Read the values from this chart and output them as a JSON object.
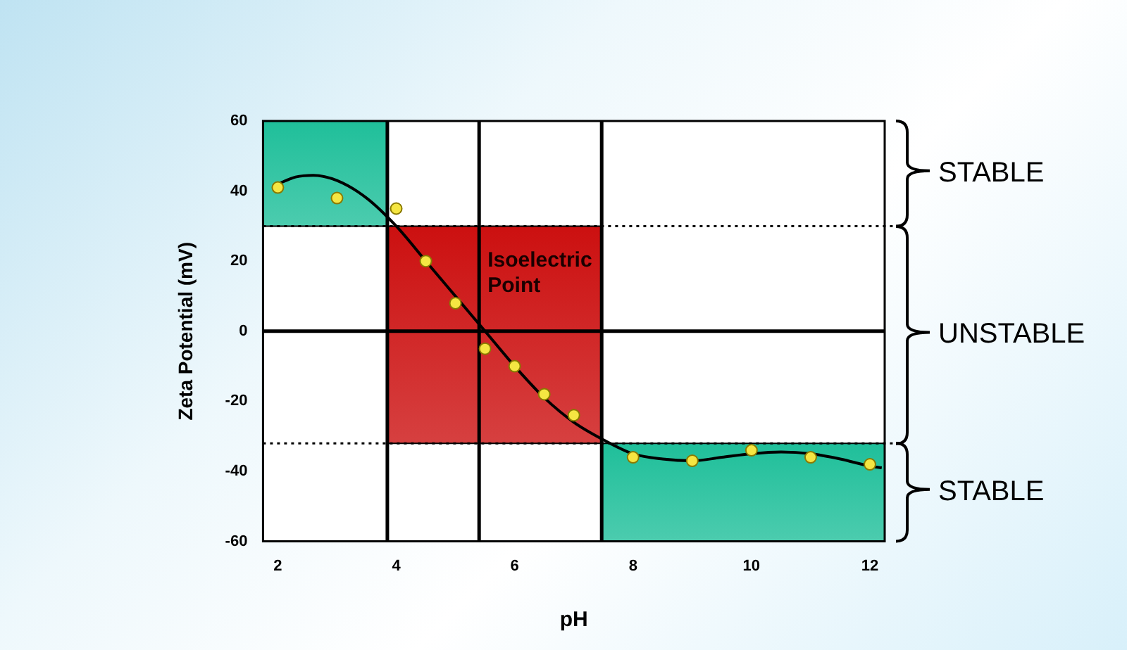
{
  "chart_data": {
    "type": "scatter",
    "xlabel": "pH",
    "ylabel": "Zeta Potential (mV)",
    "xlim": [
      1.75,
      12.25
    ],
    "xticks": [
      2,
      4,
      6,
      8,
      10,
      12
    ],
    "ylim": [
      -60,
      60
    ],
    "yticks": [
      -60,
      -40,
      -20,
      0,
      20,
      40,
      60
    ],
    "grid": false,
    "legend": false,
    "marker": "circle",
    "series": [
      {
        "type": "line",
        "color": "#000000",
        "marker": "none",
        "x": [
          2,
          2.3,
          2.6,
          3,
          3.5,
          4,
          4.5,
          5,
          5.5,
          6,
          6.5,
          7,
          7.5,
          8,
          8.5,
          9,
          9.5,
          10,
          10.5,
          11,
          11.5,
          12,
          12.2
        ],
        "values": [
          42,
          44,
          44.5,
          43,
          38,
          30,
          20,
          10,
          0,
          -10,
          -19,
          -26,
          -31,
          -35,
          -36.5,
          -37,
          -36,
          -35,
          -34.5,
          -35,
          -36.5,
          -38.5,
          -39
        ]
      },
      {
        "color": "#f5e642",
        "x": [
          2,
          3,
          4,
          4.5,
          5,
          5.5,
          6,
          6.5,
          7,
          8,
          9,
          10,
          11,
          12
        ],
        "values": [
          41,
          38,
          35,
          20,
          8,
          -5,
          -10,
          -18,
          -24,
          -36,
          -37,
          -34,
          -36,
          -38
        ]
      }
    ],
    "bands": [
      {
        "axis": "x",
        "from": 1.75,
        "to": 3.85,
        "color": "#1fbf9a"
      },
      {
        "axis": "x",
        "from": 3.85,
        "to": 7.47,
        "color": "#cc1010"
      },
      {
        "axis": "x",
        "from": 7.47,
        "to": 12.25,
        "color": "#1fbf9a"
      }
    ],
    "ref_lines": [
      {
        "axis": "y",
        "value": 30,
        "line_style": "dotted",
        "color": "#000000"
      },
      {
        "axis": "y",
        "value": -32,
        "line_style": "dotted",
        "color": "#000000"
      },
      {
        "axis": "y",
        "value": 0,
        "line_style": "solid",
        "color": "#000000"
      },
      {
        "axis": "x",
        "value": 3.85,
        "line_style": "solid",
        "color": "#000000"
      },
      {
        "axis": "x",
        "value": 5.4,
        "line_style": "solid",
        "color": "#000000"
      },
      {
        "axis": "x",
        "value": 7.47,
        "line_style": "solid",
        "color": "#000000"
      }
    ],
    "annotations": [
      {
        "text": "Isoelectric\nPoint",
        "x": 5.4,
        "y": 0
      },
      "STABLE",
      "UNSTABLE",
      "STABLE"
    ]
  }
}
